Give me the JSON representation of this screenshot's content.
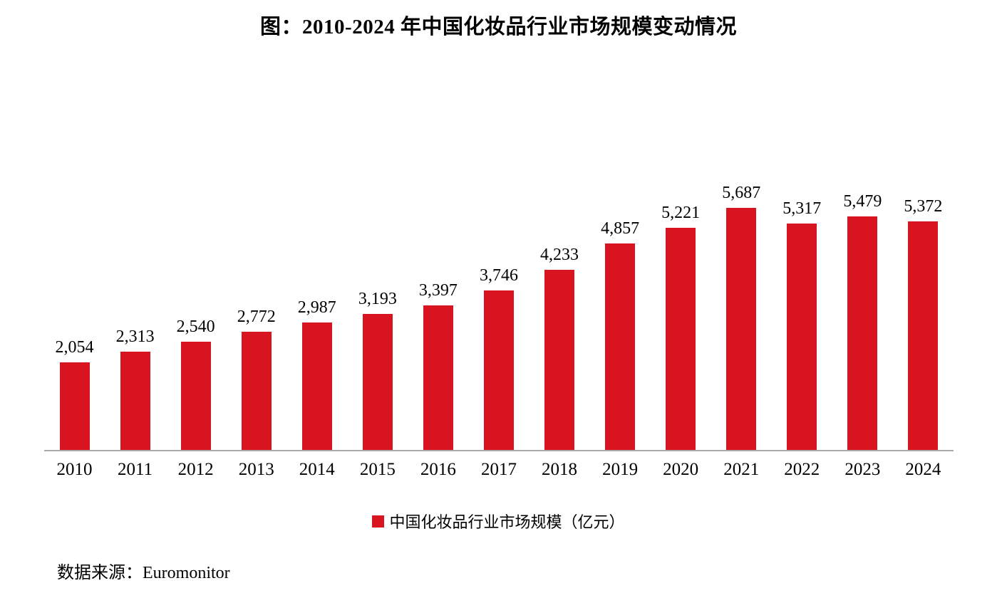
{
  "chart_data": {
    "type": "bar",
    "title": "图：2010-2024 年中国化妆品行业市场规模变动情况",
    "categories": [
      "2010",
      "2011",
      "2012",
      "2013",
      "2014",
      "2015",
      "2016",
      "2017",
      "2018",
      "2019",
      "2020",
      "2021",
      "2022",
      "2023",
      "2024"
    ],
    "values": [
      2054,
      2313,
      2540,
      2772,
      2987,
      3193,
      3397,
      3746,
      4233,
      4857,
      5221,
      5687,
      5317,
      5479,
      5372
    ],
    "value_labels": [
      "2,054",
      "2,313",
      "2,540",
      "2,772",
      "2,987",
      "3,193",
      "3,397",
      "3,746",
      "4,233",
      "4,857",
      "5,221",
      "5,687",
      "5,317",
      "5,479",
      "5,372"
    ],
    "legend": "中国化妆品行业市场规模（亿元）",
    "source_note": "数据来源：Euromonitor",
    "xlabel": "",
    "ylabel": "",
    "ylim": [
      0,
      5687
    ],
    "grid": false,
    "legend_position": "bottom",
    "bar_color": "#d7141f",
    "axis_line_color": "#ababab"
  }
}
